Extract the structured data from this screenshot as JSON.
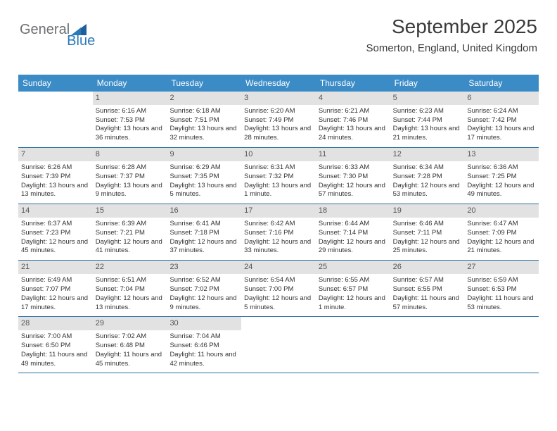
{
  "logo": {
    "part1": "General",
    "part2": "Blue"
  },
  "title": "September 2025",
  "location": "Somerton, England, United Kingdom",
  "colors": {
    "header_bg": "#3b8bc6",
    "header_text": "#ffffff",
    "daynum_bg": "#e2e2e2",
    "week_border": "#2a6fa0",
    "logo_gray": "#6d6e71",
    "logo_blue": "#2a7ab8"
  },
  "dayNames": [
    "Sunday",
    "Monday",
    "Tuesday",
    "Wednesday",
    "Thursday",
    "Friday",
    "Saturday"
  ],
  "weeks": [
    [
      null,
      {
        "d": "1",
        "sr": "Sunrise: 6:16 AM",
        "ss": "Sunset: 7:53 PM",
        "dl": "Daylight: 13 hours and 36 minutes."
      },
      {
        "d": "2",
        "sr": "Sunrise: 6:18 AM",
        "ss": "Sunset: 7:51 PM",
        "dl": "Daylight: 13 hours and 32 minutes."
      },
      {
        "d": "3",
        "sr": "Sunrise: 6:20 AM",
        "ss": "Sunset: 7:49 PM",
        "dl": "Daylight: 13 hours and 28 minutes."
      },
      {
        "d": "4",
        "sr": "Sunrise: 6:21 AM",
        "ss": "Sunset: 7:46 PM",
        "dl": "Daylight: 13 hours and 24 minutes."
      },
      {
        "d": "5",
        "sr": "Sunrise: 6:23 AM",
        "ss": "Sunset: 7:44 PM",
        "dl": "Daylight: 13 hours and 21 minutes."
      },
      {
        "d": "6",
        "sr": "Sunrise: 6:24 AM",
        "ss": "Sunset: 7:42 PM",
        "dl": "Daylight: 13 hours and 17 minutes."
      }
    ],
    [
      {
        "d": "7",
        "sr": "Sunrise: 6:26 AM",
        "ss": "Sunset: 7:39 PM",
        "dl": "Daylight: 13 hours and 13 minutes."
      },
      {
        "d": "8",
        "sr": "Sunrise: 6:28 AM",
        "ss": "Sunset: 7:37 PM",
        "dl": "Daylight: 13 hours and 9 minutes."
      },
      {
        "d": "9",
        "sr": "Sunrise: 6:29 AM",
        "ss": "Sunset: 7:35 PM",
        "dl": "Daylight: 13 hours and 5 minutes."
      },
      {
        "d": "10",
        "sr": "Sunrise: 6:31 AM",
        "ss": "Sunset: 7:32 PM",
        "dl": "Daylight: 13 hours and 1 minute."
      },
      {
        "d": "11",
        "sr": "Sunrise: 6:33 AM",
        "ss": "Sunset: 7:30 PM",
        "dl": "Daylight: 12 hours and 57 minutes."
      },
      {
        "d": "12",
        "sr": "Sunrise: 6:34 AM",
        "ss": "Sunset: 7:28 PM",
        "dl": "Daylight: 12 hours and 53 minutes."
      },
      {
        "d": "13",
        "sr": "Sunrise: 6:36 AM",
        "ss": "Sunset: 7:25 PM",
        "dl": "Daylight: 12 hours and 49 minutes."
      }
    ],
    [
      {
        "d": "14",
        "sr": "Sunrise: 6:37 AM",
        "ss": "Sunset: 7:23 PM",
        "dl": "Daylight: 12 hours and 45 minutes."
      },
      {
        "d": "15",
        "sr": "Sunrise: 6:39 AM",
        "ss": "Sunset: 7:21 PM",
        "dl": "Daylight: 12 hours and 41 minutes."
      },
      {
        "d": "16",
        "sr": "Sunrise: 6:41 AM",
        "ss": "Sunset: 7:18 PM",
        "dl": "Daylight: 12 hours and 37 minutes."
      },
      {
        "d": "17",
        "sr": "Sunrise: 6:42 AM",
        "ss": "Sunset: 7:16 PM",
        "dl": "Daylight: 12 hours and 33 minutes."
      },
      {
        "d": "18",
        "sr": "Sunrise: 6:44 AM",
        "ss": "Sunset: 7:14 PM",
        "dl": "Daylight: 12 hours and 29 minutes."
      },
      {
        "d": "19",
        "sr": "Sunrise: 6:46 AM",
        "ss": "Sunset: 7:11 PM",
        "dl": "Daylight: 12 hours and 25 minutes."
      },
      {
        "d": "20",
        "sr": "Sunrise: 6:47 AM",
        "ss": "Sunset: 7:09 PM",
        "dl": "Daylight: 12 hours and 21 minutes."
      }
    ],
    [
      {
        "d": "21",
        "sr": "Sunrise: 6:49 AM",
        "ss": "Sunset: 7:07 PM",
        "dl": "Daylight: 12 hours and 17 minutes."
      },
      {
        "d": "22",
        "sr": "Sunrise: 6:51 AM",
        "ss": "Sunset: 7:04 PM",
        "dl": "Daylight: 12 hours and 13 minutes."
      },
      {
        "d": "23",
        "sr": "Sunrise: 6:52 AM",
        "ss": "Sunset: 7:02 PM",
        "dl": "Daylight: 12 hours and 9 minutes."
      },
      {
        "d": "24",
        "sr": "Sunrise: 6:54 AM",
        "ss": "Sunset: 7:00 PM",
        "dl": "Daylight: 12 hours and 5 minutes."
      },
      {
        "d": "25",
        "sr": "Sunrise: 6:55 AM",
        "ss": "Sunset: 6:57 PM",
        "dl": "Daylight: 12 hours and 1 minute."
      },
      {
        "d": "26",
        "sr": "Sunrise: 6:57 AM",
        "ss": "Sunset: 6:55 PM",
        "dl": "Daylight: 11 hours and 57 minutes."
      },
      {
        "d": "27",
        "sr": "Sunrise: 6:59 AM",
        "ss": "Sunset: 6:53 PM",
        "dl": "Daylight: 11 hours and 53 minutes."
      }
    ],
    [
      {
        "d": "28",
        "sr": "Sunrise: 7:00 AM",
        "ss": "Sunset: 6:50 PM",
        "dl": "Daylight: 11 hours and 49 minutes."
      },
      {
        "d": "29",
        "sr": "Sunrise: 7:02 AM",
        "ss": "Sunset: 6:48 PM",
        "dl": "Daylight: 11 hours and 45 minutes."
      },
      {
        "d": "30",
        "sr": "Sunrise: 7:04 AM",
        "ss": "Sunset: 6:46 PM",
        "dl": "Daylight: 11 hours and 42 minutes."
      },
      null,
      null,
      null,
      null
    ]
  ]
}
